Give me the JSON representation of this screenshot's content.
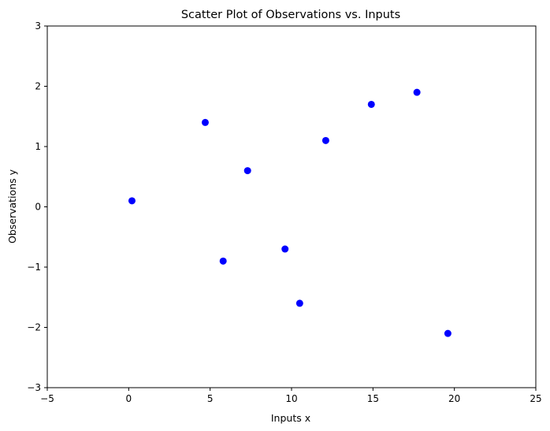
{
  "chart_data": {
    "type": "scatter",
    "title": "Scatter Plot of Observations vs. Inputs",
    "xlabel": "Inputs x",
    "ylabel": "Observations y",
    "xlim": [
      -5,
      25
    ],
    "ylim": [
      -3,
      3
    ],
    "x_ticks": [
      -5,
      0,
      5,
      10,
      15,
      20,
      25
    ],
    "y_ticks": [
      -3,
      -2,
      -1,
      0,
      1,
      2,
      3
    ],
    "x_tick_labels": [
      "−5",
      "0",
      "5",
      "10",
      "15",
      "20",
      "25"
    ],
    "y_tick_labels": [
      "−3",
      "−2",
      "−1",
      "0",
      "1",
      "2",
      "3"
    ],
    "grid": false,
    "marker_color": "#0000ff",
    "points": [
      {
        "x": 0.2,
        "y": 0.1
      },
      {
        "x": 4.7,
        "y": 1.4
      },
      {
        "x": 5.8,
        "y": -0.9
      },
      {
        "x": 7.3,
        "y": 0.6
      },
      {
        "x": 9.6,
        "y": -0.7
      },
      {
        "x": 10.5,
        "y": -1.6
      },
      {
        "x": 12.1,
        "y": 1.1
      },
      {
        "x": 14.9,
        "y": 1.7
      },
      {
        "x": 17.7,
        "y": 1.9
      },
      {
        "x": 19.6,
        "y": -2.1
      }
    ]
  }
}
